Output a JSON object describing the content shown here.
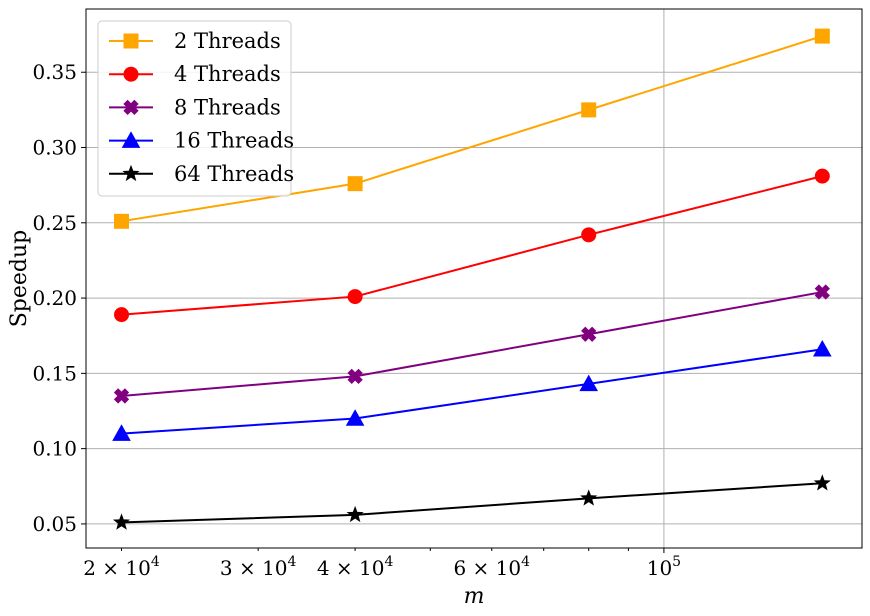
{
  "chart_data": {
    "type": "line",
    "x_scale": "log",
    "xlabel": "m",
    "ylabel": "Speedup",
    "x": [
      20000,
      40000,
      80000,
      160000
    ],
    "xlim": [
      18000,
      180000
    ],
    "ylim": [
      0.034,
      0.392
    ],
    "grid": true,
    "legend_position": "top-left",
    "x_ticks": [
      {
        "value": 20000,
        "mantissa": "2",
        "base": "10",
        "exp": "4"
      },
      {
        "value": 30000,
        "mantissa": "3",
        "base": "10",
        "exp": "4"
      },
      {
        "value": 40000,
        "mantissa": "4",
        "base": "10",
        "exp": "4"
      },
      {
        "value": 60000,
        "mantissa": "6",
        "base": "10",
        "exp": "4"
      },
      {
        "value": 100000,
        "mantissa": "",
        "base": "10",
        "exp": "5"
      }
    ],
    "y_ticks": [
      0.05,
      0.1,
      0.15,
      0.2,
      0.25,
      0.3,
      0.35
    ],
    "y_tick_labels": [
      "0.05",
      "0.10",
      "0.15",
      "0.20",
      "0.25",
      "0.30",
      "0.35"
    ],
    "series": [
      {
        "name": "2 Threads",
        "color": "#ffa500",
        "marker": "square",
        "values": [
          0.251,
          0.276,
          0.325,
          0.374
        ]
      },
      {
        "name": "4 Threads",
        "color": "#ff0000",
        "marker": "circle",
        "values": [
          0.189,
          0.201,
          0.242,
          0.281
        ]
      },
      {
        "name": "8 Threads",
        "color": "#800080",
        "marker": "x",
        "values": [
          0.135,
          0.148,
          0.176,
          0.204
        ]
      },
      {
        "name": "16 Threads",
        "color": "#0000ff",
        "marker": "triangle",
        "values": [
          0.11,
          0.12,
          0.143,
          0.166
        ]
      },
      {
        "name": "64 Threads",
        "color": "#000000",
        "marker": "star",
        "values": [
          0.051,
          0.056,
          0.067,
          0.077
        ]
      }
    ]
  }
}
